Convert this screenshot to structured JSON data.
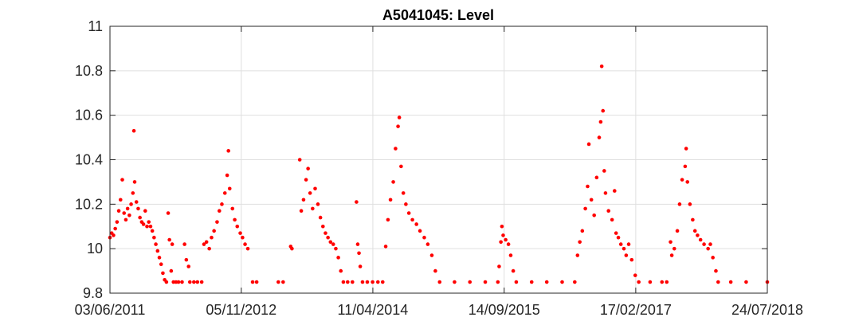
{
  "chart_data": {
    "type": "scatter",
    "title": "A5041045: Level",
    "xlabel": "",
    "ylabel": "",
    "grid": true,
    "marker_color": "#ff0000",
    "x_is_date": true,
    "xlim": [
      "2011-06-03",
      "2018-07-24"
    ],
    "ylim": [
      9.8,
      11
    ],
    "x_ticks": [
      "2011-06-03",
      "2012-11-05",
      "2014-04-11",
      "2015-09-14",
      "2017-02-17",
      "2018-07-24"
    ],
    "x_tick_labels": [
      "03/06/2011",
      "05/11/2012",
      "11/04/2014",
      "14/09/2015",
      "17/02/2017",
      "24/07/2018"
    ],
    "y_ticks": [
      9.8,
      10,
      10.2,
      10.4,
      10.6,
      10.8,
      11
    ],
    "y_tick_labels": [
      "9.8",
      "10",
      "10.2",
      "10.4",
      "10.6",
      "10.8",
      "11"
    ],
    "series": [
      {
        "points": [
          [
            "2011-06-03",
            10.05
          ],
          [
            "2011-06-10",
            10.07
          ],
          [
            "2011-06-17",
            10.06
          ],
          [
            "2011-06-24",
            10.09
          ],
          [
            "2011-07-01",
            10.12
          ],
          [
            "2011-07-08",
            10.17
          ],
          [
            "2011-07-15",
            10.22
          ],
          [
            "2011-07-22",
            10.31
          ],
          [
            "2011-07-29",
            10.16
          ],
          [
            "2011-08-05",
            10.13
          ],
          [
            "2011-08-12",
            10.18
          ],
          [
            "2011-08-19",
            10.15
          ],
          [
            "2011-08-26",
            10.2
          ],
          [
            "2011-09-02",
            10.25
          ],
          [
            "2011-09-06",
            10.53
          ],
          [
            "2011-09-09",
            10.3
          ],
          [
            "2011-09-16",
            10.21
          ],
          [
            "2011-09-23",
            10.18
          ],
          [
            "2011-09-30",
            10.14
          ],
          [
            "2011-10-07",
            10.12
          ],
          [
            "2011-10-14",
            10.11
          ],
          [
            "2011-10-21",
            10.17
          ],
          [
            "2011-10-28",
            10.1
          ],
          [
            "2011-11-04",
            10.12
          ],
          [
            "2011-11-11",
            10.1
          ],
          [
            "2011-11-18",
            10.08
          ],
          [
            "2011-11-25",
            10.05
          ],
          [
            "2011-12-02",
            10.02
          ],
          [
            "2011-12-09",
            9.99
          ],
          [
            "2011-12-16",
            9.96
          ],
          [
            "2011-12-23",
            9.93
          ],
          [
            "2011-12-30",
            9.89
          ],
          [
            "2012-01-06",
            9.86
          ],
          [
            "2012-01-13",
            9.85
          ],
          [
            "2012-01-20",
            10.16
          ],
          [
            "2012-01-25",
            10.04
          ],
          [
            "2012-02-01",
            9.9
          ],
          [
            "2012-02-05",
            10.02
          ],
          [
            "2012-02-10",
            9.85
          ],
          [
            "2012-02-20",
            9.85
          ],
          [
            "2012-03-01",
            9.85
          ],
          [
            "2012-03-15",
            9.85
          ],
          [
            "2012-03-25",
            10.02
          ],
          [
            "2012-04-01",
            9.95
          ],
          [
            "2012-04-10",
            9.92
          ],
          [
            "2012-04-15",
            9.85
          ],
          [
            "2012-05-01",
            9.85
          ],
          [
            "2012-05-15",
            9.85
          ],
          [
            "2012-06-01",
            9.85
          ],
          [
            "2012-06-10",
            10.02
          ],
          [
            "2012-06-20",
            10.03
          ],
          [
            "2012-07-01",
            10.0
          ],
          [
            "2012-07-10",
            10.05
          ],
          [
            "2012-07-20",
            10.08
          ],
          [
            "2012-08-01",
            10.12
          ],
          [
            "2012-08-10",
            10.17
          ],
          [
            "2012-08-20",
            10.2
          ],
          [
            "2012-09-01",
            10.25
          ],
          [
            "2012-09-10",
            10.33
          ],
          [
            "2012-09-15",
            10.44
          ],
          [
            "2012-09-20",
            10.27
          ],
          [
            "2012-10-01",
            10.18
          ],
          [
            "2012-10-10",
            10.13
          ],
          [
            "2012-10-20",
            10.1
          ],
          [
            "2012-11-01",
            10.07
          ],
          [
            "2012-11-10",
            10.05
          ],
          [
            "2012-11-20",
            10.02
          ],
          [
            "2012-12-01",
            10.0
          ],
          [
            "2012-12-20",
            9.85
          ],
          [
            "2013-01-05",
            9.85
          ],
          [
            "2013-04-01",
            9.85
          ],
          [
            "2013-04-20",
            9.85
          ],
          [
            "2013-05-20",
            10.01
          ],
          [
            "2013-05-25",
            10.0
          ],
          [
            "2013-06-25",
            10.4
          ],
          [
            "2013-07-01",
            10.17
          ],
          [
            "2013-07-10",
            10.22
          ],
          [
            "2013-07-20",
            10.31
          ],
          [
            "2013-07-28",
            10.36
          ],
          [
            "2013-08-05",
            10.25
          ],
          [
            "2013-08-15",
            10.18
          ],
          [
            "2013-08-25",
            10.27
          ],
          [
            "2013-09-05",
            10.2
          ],
          [
            "2013-09-15",
            10.14
          ],
          [
            "2013-09-25",
            10.1
          ],
          [
            "2013-10-05",
            10.07
          ],
          [
            "2013-10-15",
            10.05
          ],
          [
            "2013-10-25",
            10.03
          ],
          [
            "2013-11-05",
            10.02
          ],
          [
            "2013-11-15",
            10.0
          ],
          [
            "2013-11-25",
            9.96
          ],
          [
            "2013-12-05",
            9.9
          ],
          [
            "2013-12-15",
            9.85
          ],
          [
            "2014-01-01",
            9.85
          ],
          [
            "2014-01-20",
            9.85
          ],
          [
            "2014-02-05",
            10.21
          ],
          [
            "2014-02-10",
            10.02
          ],
          [
            "2014-02-15",
            9.98
          ],
          [
            "2014-02-20",
            9.92
          ],
          [
            "2014-03-01",
            9.85
          ],
          [
            "2014-03-20",
            9.85
          ],
          [
            "2014-04-10",
            9.85
          ],
          [
            "2014-05-01",
            9.85
          ],
          [
            "2014-05-20",
            9.85
          ],
          [
            "2014-06-01",
            10.01
          ],
          [
            "2014-06-10",
            10.13
          ],
          [
            "2014-06-20",
            10.22
          ],
          [
            "2014-07-01",
            10.3
          ],
          [
            "2014-07-10",
            10.45
          ],
          [
            "2014-07-20",
            10.55
          ],
          [
            "2014-07-25",
            10.59
          ],
          [
            "2014-08-01",
            10.37
          ],
          [
            "2014-08-10",
            10.25
          ],
          [
            "2014-08-20",
            10.2
          ],
          [
            "2014-09-01",
            10.16
          ],
          [
            "2014-09-15",
            10.13
          ],
          [
            "2014-10-01",
            10.11
          ],
          [
            "2014-10-15",
            10.08
          ],
          [
            "2014-11-01",
            10.05
          ],
          [
            "2014-11-15",
            10.02
          ],
          [
            "2014-12-01",
            9.97
          ],
          [
            "2014-12-15",
            9.9
          ],
          [
            "2015-01-01",
            9.85
          ],
          [
            "2015-03-01",
            9.85
          ],
          [
            "2015-05-01",
            9.85
          ],
          [
            "2015-07-01",
            9.85
          ],
          [
            "2015-08-20",
            9.85
          ],
          [
            "2015-08-25",
            9.92
          ],
          [
            "2015-09-01",
            10.03
          ],
          [
            "2015-09-05",
            10.1
          ],
          [
            "2015-09-10",
            10.06
          ],
          [
            "2015-09-20",
            10.04
          ],
          [
            "2015-10-01",
            10.02
          ],
          [
            "2015-10-10",
            9.97
          ],
          [
            "2015-10-20",
            9.9
          ],
          [
            "2015-11-01",
            9.85
          ],
          [
            "2016-01-01",
            9.85
          ],
          [
            "2016-03-01",
            9.85
          ],
          [
            "2016-05-01",
            9.85
          ],
          [
            "2016-06-20",
            9.85
          ],
          [
            "2016-07-01",
            9.97
          ],
          [
            "2016-07-10",
            10.03
          ],
          [
            "2016-07-20",
            10.08
          ],
          [
            "2016-08-01",
            10.18
          ],
          [
            "2016-08-10",
            10.28
          ],
          [
            "2016-08-15",
            10.47
          ],
          [
            "2016-08-25",
            10.22
          ],
          [
            "2016-09-05",
            10.15
          ],
          [
            "2016-09-15",
            10.32
          ],
          [
            "2016-09-25",
            10.5
          ],
          [
            "2016-10-01",
            10.57
          ],
          [
            "2016-10-05",
            10.82
          ],
          [
            "2016-10-10",
            10.62
          ],
          [
            "2016-10-15",
            10.35
          ],
          [
            "2016-10-20",
            10.25
          ],
          [
            "2016-11-01",
            10.17
          ],
          [
            "2016-11-15",
            10.13
          ],
          [
            "2016-11-25",
            10.26
          ],
          [
            "2016-12-01",
            10.07
          ],
          [
            "2016-12-10",
            10.05
          ],
          [
            "2016-12-20",
            10.02
          ],
          [
            "2017-01-01",
            10.0
          ],
          [
            "2017-01-10",
            9.97
          ],
          [
            "2017-01-20",
            10.02
          ],
          [
            "2017-02-01",
            9.95
          ],
          [
            "2017-02-15",
            9.88
          ],
          [
            "2017-03-01",
            9.85
          ],
          [
            "2017-04-15",
            9.85
          ],
          [
            "2017-06-01",
            9.85
          ],
          [
            "2017-06-20",
            9.85
          ],
          [
            "2017-07-05",
            10.03
          ],
          [
            "2017-07-10",
            9.97
          ],
          [
            "2017-07-20",
            10.0
          ],
          [
            "2017-08-01",
            10.08
          ],
          [
            "2017-08-10",
            10.2
          ],
          [
            "2017-08-20",
            10.31
          ],
          [
            "2017-09-01",
            10.37
          ],
          [
            "2017-09-05",
            10.45
          ],
          [
            "2017-09-10",
            10.3
          ],
          [
            "2017-09-20",
            10.2
          ],
          [
            "2017-10-01",
            10.13
          ],
          [
            "2017-10-10",
            10.08
          ],
          [
            "2017-10-20",
            10.06
          ],
          [
            "2017-11-01",
            10.04
          ],
          [
            "2017-11-15",
            10.02
          ],
          [
            "2017-12-01",
            10.0
          ],
          [
            "2017-12-10",
            10.02
          ],
          [
            "2017-12-20",
            9.96
          ],
          [
            "2018-01-01",
            9.9
          ],
          [
            "2018-01-10",
            9.85
          ],
          [
            "2018-03-01",
            9.85
          ],
          [
            "2018-05-01",
            9.85
          ],
          [
            "2018-07-24",
            9.85
          ]
        ]
      }
    ]
  }
}
